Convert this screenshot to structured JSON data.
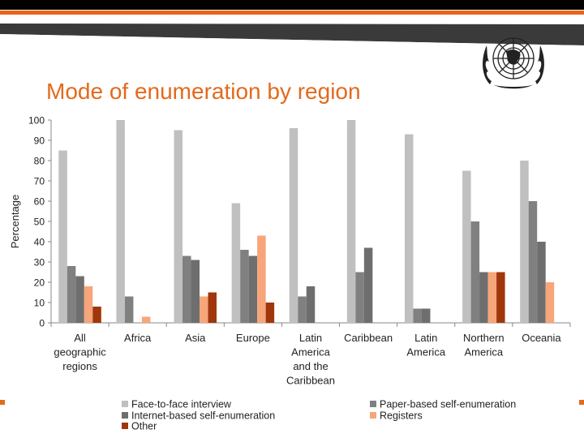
{
  "slide": {
    "title": "Mode of enumeration by region",
    "accent_color": "#e26a1c",
    "logo_icon": "un-emblem-icon"
  },
  "chart_data": {
    "type": "bar",
    "title": "",
    "xlabel": "",
    "ylabel": "Percentage",
    "ylim": [
      0,
      100
    ],
    "yticks": [
      0,
      10,
      20,
      30,
      40,
      50,
      60,
      70,
      80,
      90,
      100
    ],
    "grid": false,
    "legend_position": "bottom",
    "categories": [
      "All geographic regions",
      "Africa",
      "Asia",
      "Europe",
      "Latin America and the Caribbean",
      "Caribbean",
      "Latin America",
      "Northern America",
      "Oceania"
    ],
    "category_lines": [
      [
        "All",
        "geographic",
        "regions"
      ],
      [
        "Africa"
      ],
      [
        "Asia"
      ],
      [
        "Europe"
      ],
      [
        "Latin",
        "America",
        "and the",
        "Caribbean"
      ],
      [
        "Caribbean"
      ],
      [
        "Latin",
        "America"
      ],
      [
        "Northern",
        "America"
      ],
      [
        "Oceania"
      ]
    ],
    "series": [
      {
        "name": "Face-to-face interview",
        "color": "#c0c0c0",
        "values": [
          85,
          100,
          95,
          59,
          96,
          100,
          93,
          75,
          80
        ]
      },
      {
        "name": "Paper-based self-enumeration",
        "color": "#808080",
        "values": [
          28,
          13,
          33,
          36,
          13,
          25,
          7,
          50,
          60
        ]
      },
      {
        "name": "Internet-based self-enumeration",
        "color": "#6e6e6e",
        "values": [
          23,
          0,
          31,
          33,
          18,
          37,
          7,
          25,
          40
        ]
      },
      {
        "name": "Registers",
        "color": "#f7a57a",
        "values": [
          18,
          3,
          13,
          43,
          0,
          0,
          0,
          25,
          20
        ]
      },
      {
        "name": "Other",
        "color": "#a0360c",
        "values": [
          8,
          0,
          15,
          10,
          0,
          0,
          0,
          25,
          0
        ]
      }
    ]
  }
}
